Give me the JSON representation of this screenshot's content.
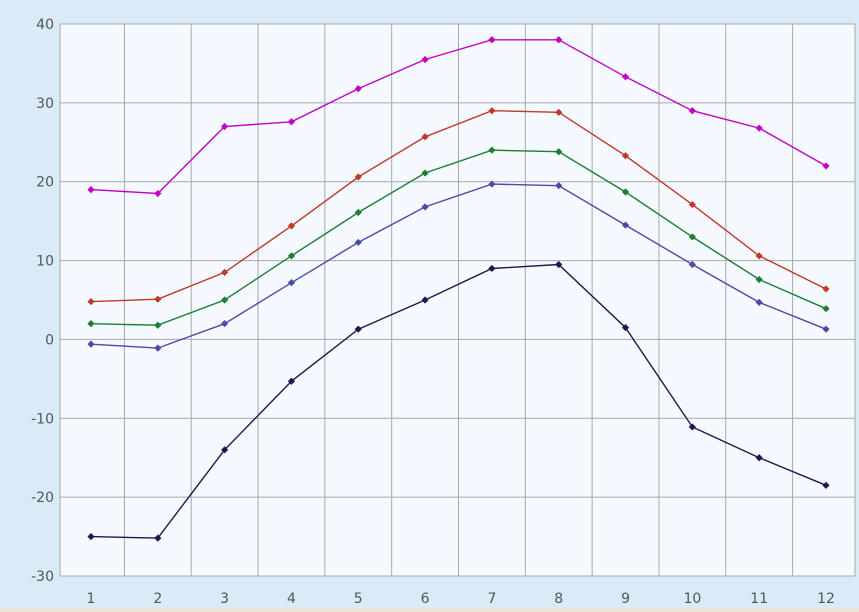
{
  "chart_data": {
    "type": "line",
    "title": "",
    "xlabel": "",
    "ylabel": "",
    "x": [
      1,
      2,
      3,
      4,
      5,
      6,
      7,
      8,
      9,
      10,
      11,
      12
    ],
    "x_tick_labels": [
      "1",
      "2",
      "3",
      "4",
      "5",
      "6",
      "7",
      "8",
      "9",
      "10",
      "11",
      "12"
    ],
    "ylim": [
      -30,
      40
    ],
    "y_ticks": [
      -30,
      -20,
      -10,
      0,
      10,
      20,
      30,
      40
    ],
    "y_tick_labels": [
      "-30",
      "-20",
      "-10",
      "0",
      "10",
      "20",
      "30",
      "40"
    ],
    "grid": true,
    "legend": "none",
    "marker": "diamond",
    "colors": {
      "plot_background": "#f4faff",
      "frame_background": "#d9ebf6",
      "page_background": "#ece4d6",
      "grid": "#a9a9a9",
      "tick_text": "#555555"
    },
    "series": [
      {
        "color": "#c400c4",
        "values": [
          19.0,
          18.5,
          27.0,
          27.6,
          31.8,
          35.5,
          38.0,
          38.0,
          33.3,
          29.0,
          26.8,
          22.0
        ]
      },
      {
        "color": "#c0392b",
        "values": [
          4.8,
          5.1,
          8.5,
          14.4,
          20.6,
          25.7,
          29.0,
          28.8,
          23.3,
          17.1,
          10.6,
          6.4
        ]
      },
      {
        "color": "#1e7d32",
        "values": [
          2.0,
          1.8,
          5.0,
          10.6,
          16.1,
          21.1,
          24.0,
          23.8,
          18.7,
          13.0,
          7.6,
          3.9
        ]
      },
      {
        "color": "#4a4aa8",
        "values": [
          -0.6,
          -1.1,
          2.0,
          7.2,
          12.3,
          16.8,
          19.7,
          19.5,
          14.5,
          9.5,
          4.7,
          1.3
        ]
      },
      {
        "color": "#1a1a4e",
        "values": [
          -25.0,
          -25.2,
          -14.0,
          -5.3,
          1.3,
          5.0,
          9.0,
          9.5,
          1.5,
          -11.1,
          -15.0,
          -18.5
        ]
      }
    ]
  }
}
